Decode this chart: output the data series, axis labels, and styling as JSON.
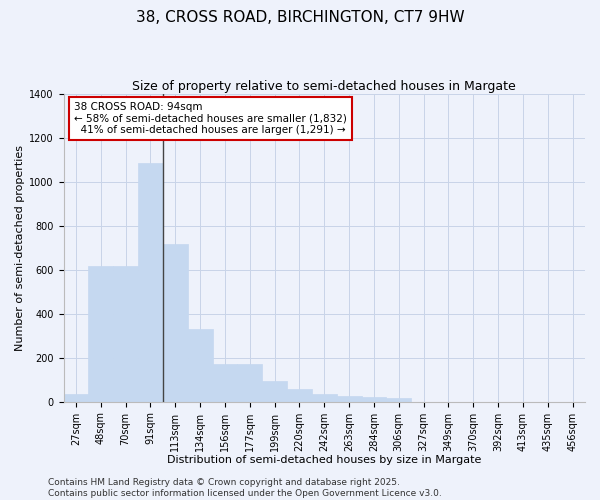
{
  "title1": "38, CROSS ROAD, BIRCHINGTON, CT7 9HW",
  "title2": "Size of property relative to semi-detached houses in Margate",
  "xlabel": "Distribution of semi-detached houses by size in Margate",
  "ylabel": "Number of semi-detached properties",
  "categories": [
    "27sqm",
    "48sqm",
    "70sqm",
    "91sqm",
    "113sqm",
    "134sqm",
    "156sqm",
    "177sqm",
    "199sqm",
    "220sqm",
    "242sqm",
    "263sqm",
    "284sqm",
    "306sqm",
    "327sqm",
    "349sqm",
    "370sqm",
    "392sqm",
    "413sqm",
    "435sqm",
    "456sqm"
  ],
  "values": [
    35,
    620,
    620,
    1085,
    720,
    330,
    170,
    170,
    95,
    60,
    35,
    25,
    20,
    15,
    0,
    0,
    0,
    0,
    0,
    0,
    0
  ],
  "bar_color": "#c5d8f0",
  "bar_edge_color": "#c5d8f0",
  "ylim": [
    0,
    1400
  ],
  "yticks": [
    0,
    200,
    400,
    600,
    800,
    1000,
    1200,
    1400
  ],
  "annotation_text": "38 CROSS ROAD: 94sqm\n← 58% of semi-detached houses are smaller (1,832)\n  41% of semi-detached houses are larger (1,291) →",
  "annotation_box_color": "#ffffff",
  "annotation_box_edge": "#cc0000",
  "marker_bar_index": 3,
  "background_color": "#eef2fb",
  "grid_color": "#c8d4e8",
  "footer": "Contains HM Land Registry data © Crown copyright and database right 2025.\nContains public sector information licensed under the Open Government Licence v3.0.",
  "title1_fontsize": 11,
  "title2_fontsize": 9,
  "xlabel_fontsize": 8,
  "ylabel_fontsize": 8,
  "tick_fontsize": 7,
  "ann_fontsize": 7.5,
  "footer_fontsize": 6.5
}
